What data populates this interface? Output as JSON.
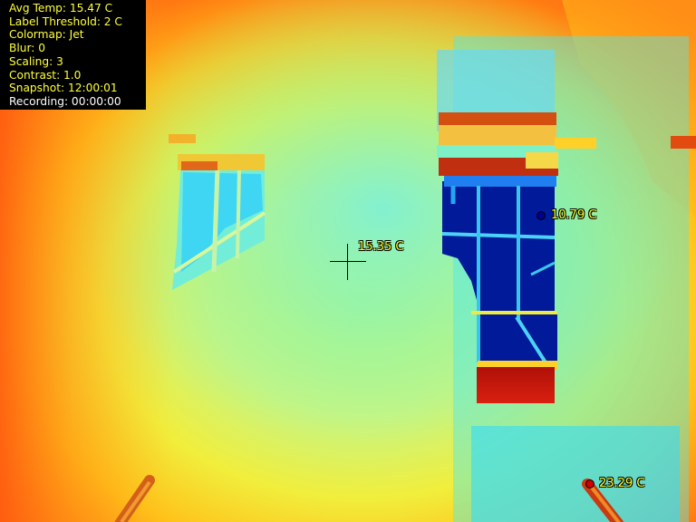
{
  "hud": {
    "avg_temp": "Avg Temp: 15.47 C",
    "label_threshold": "Label Threshold: 2 C",
    "colormap": "Colormap: Jet",
    "blur": "Blur: 0",
    "scaling": "Scaling: 3",
    "contrast": "Contrast: 1.0",
    "snapshot": "Snapshot: 12:00:01",
    "recording": "Recording: 00:00:00"
  },
  "markers": {
    "center": {
      "label": "15.35 C"
    },
    "cold": {
      "label": "10.79 C",
      "color": "#00008b"
    },
    "hot": {
      "label": "23.29 C",
      "color": "#d00000"
    }
  },
  "colors": {
    "hud_text": "#ffff3c",
    "hud_recording": "#ffffff",
    "label_text": "#ffff28"
  }
}
